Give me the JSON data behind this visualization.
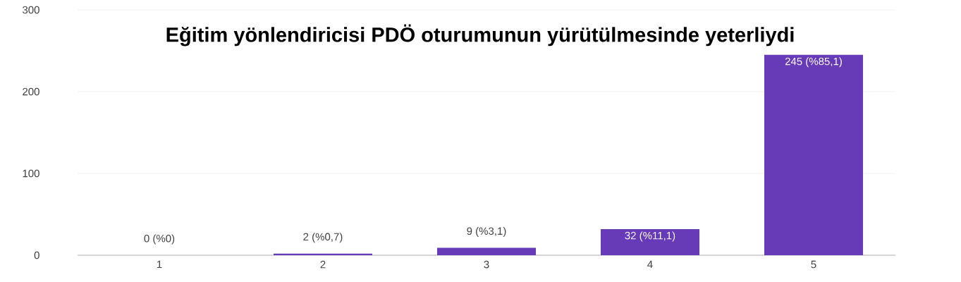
{
  "chart_data": {
    "type": "bar",
    "title": "Eğitim yönlendiricisi PDÖ oturumunun yürütülmesinde yeterliydi",
    "categories": [
      "1",
      "2",
      "3",
      "4",
      "5"
    ],
    "values": [
      0,
      2,
      9,
      32,
      245
    ],
    "value_labels": [
      "0 (%0)",
      "2 (%0,7)",
      "9 (%3,1)",
      "32 (%11,1)",
      "245 (%85,1)"
    ],
    "color": "#673ab7",
    "ylim": [
      0,
      300
    ],
    "yticks": [
      0,
      100,
      200,
      300
    ],
    "grid": "y"
  }
}
